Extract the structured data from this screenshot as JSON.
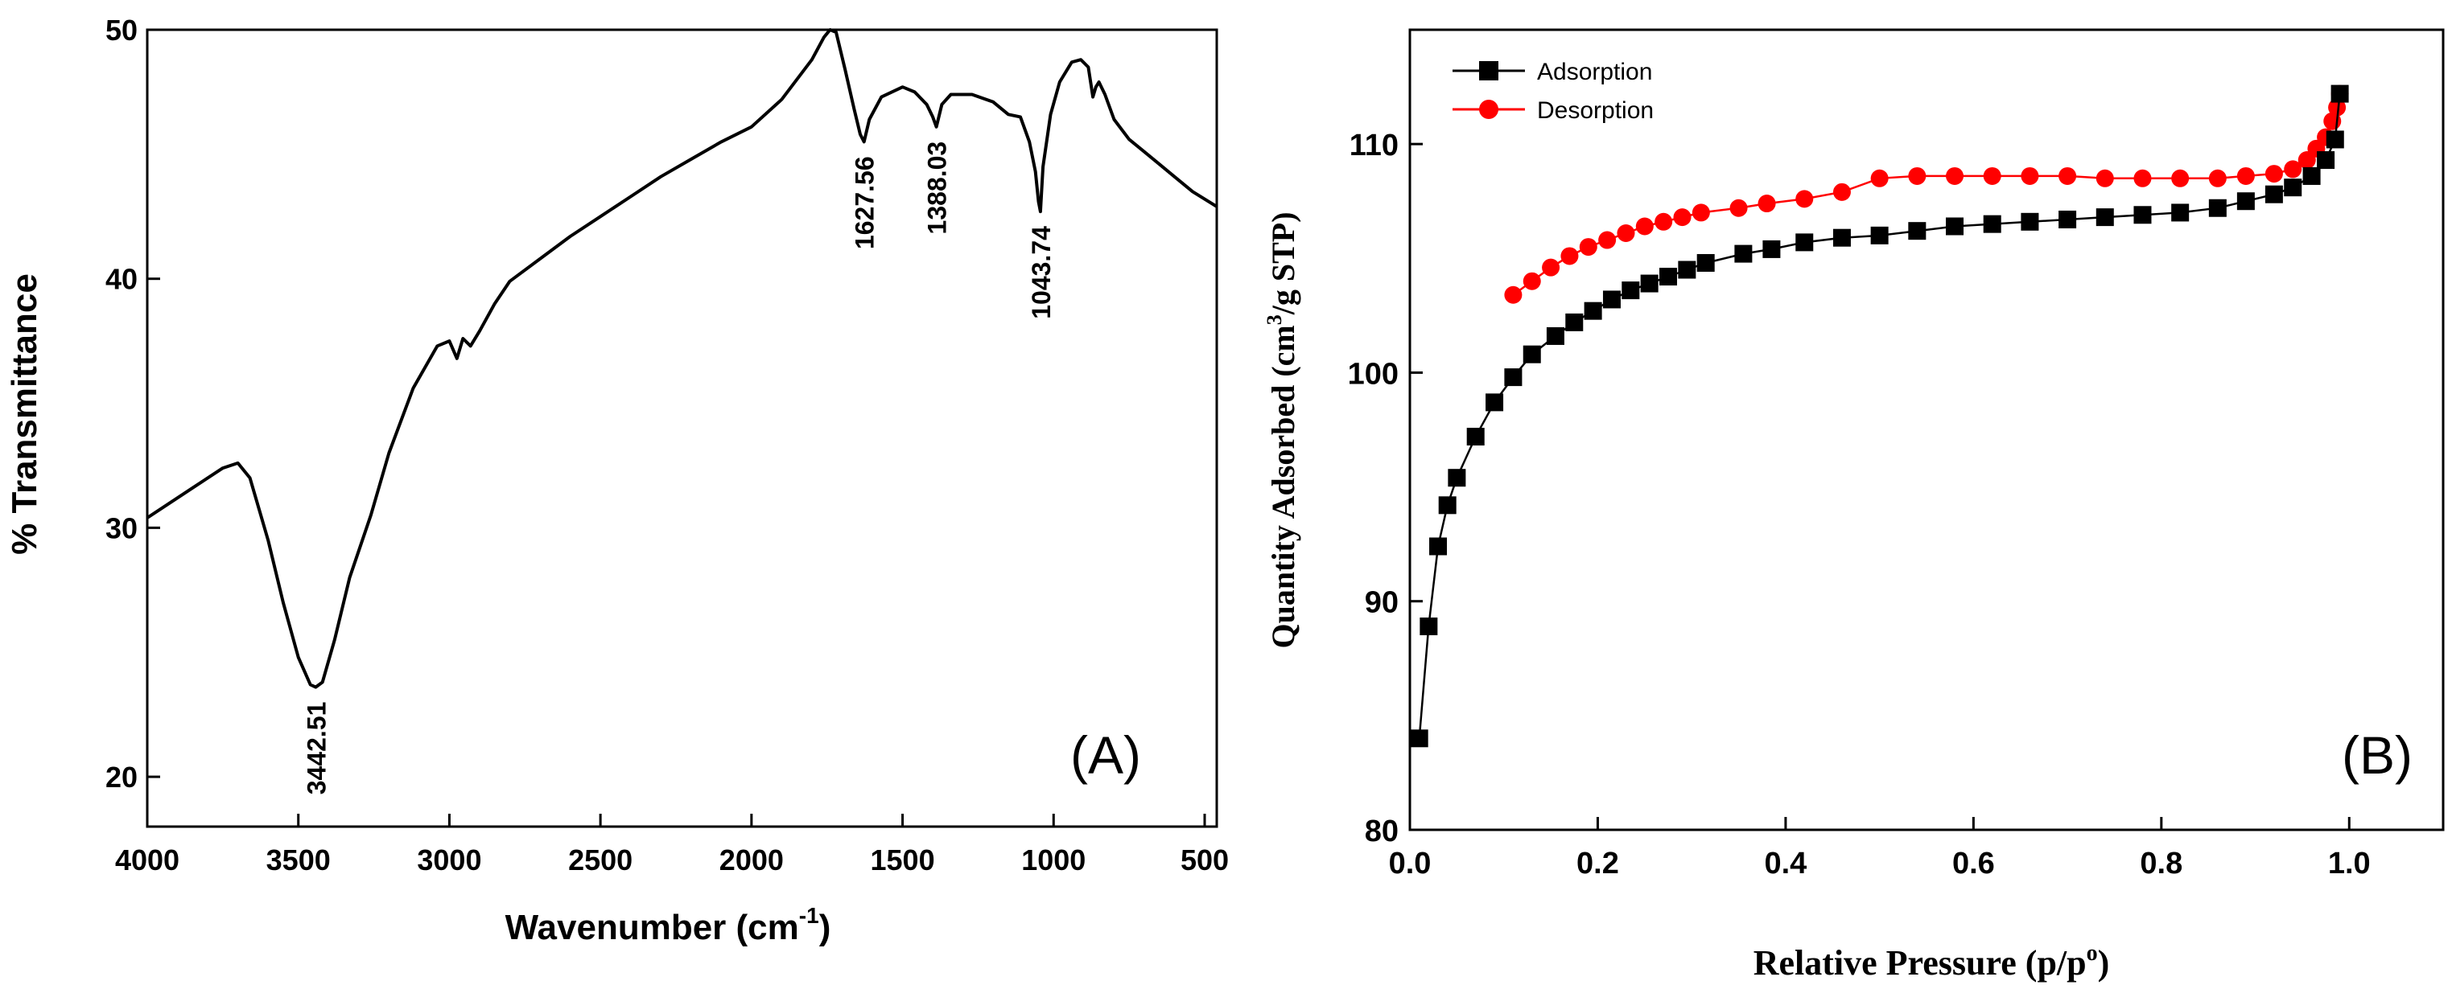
{
  "chart_data": [
    {
      "panel": "A",
      "type": "line",
      "panel_label": "(A)",
      "xlabel": "Wavenumber (cm",
      "xlabel_sup": "-1",
      "xlabel_end": ")",
      "ylabel": "% Transmittance",
      "xlim": [
        4000,
        460
      ],
      "ylim": [
        18,
        50
      ],
      "x_ticks": [
        4000,
        3500,
        3000,
        2500,
        2000,
        1500,
        1000,
        500
      ],
      "y_ticks": [
        20,
        30,
        40,
        50
      ],
      "line_color": "#000000",
      "spectrum": [
        [
          4000,
          30.4
        ],
        [
          3850,
          31.6
        ],
        [
          3750,
          32.4
        ],
        [
          3700,
          32.6
        ],
        [
          3660,
          32.0
        ],
        [
          3600,
          29.5
        ],
        [
          3550,
          27.0
        ],
        [
          3500,
          24.8
        ],
        [
          3460,
          23.7
        ],
        [
          3442.51,
          23.6
        ],
        [
          3420,
          23.8
        ],
        [
          3380,
          25.5
        ],
        [
          3330,
          28.0
        ],
        [
          3260,
          30.5
        ],
        [
          3200,
          33.0
        ],
        [
          3120,
          35.6
        ],
        [
          3040,
          37.3
        ],
        [
          3000,
          37.5
        ],
        [
          2975,
          36.8
        ],
        [
          2955,
          37.6
        ],
        [
          2930,
          37.3
        ],
        [
          2900,
          37.9
        ],
        [
          2850,
          39.0
        ],
        [
          2800,
          39.9
        ],
        [
          2700,
          40.8
        ],
        [
          2600,
          41.7
        ],
        [
          2500,
          42.5
        ],
        [
          2400,
          43.3
        ],
        [
          2300,
          44.1
        ],
        [
          2200,
          44.8
        ],
        [
          2100,
          45.5
        ],
        [
          2000,
          46.1
        ],
        [
          1900,
          47.2
        ],
        [
          1800,
          48.8
        ],
        [
          1760,
          49.7
        ],
        [
          1740,
          50.0
        ],
        [
          1720,
          49.9
        ],
        [
          1690,
          48.4
        ],
        [
          1660,
          46.8
        ],
        [
          1640,
          45.8
        ],
        [
          1627.56,
          45.5
        ],
        [
          1610,
          46.4
        ],
        [
          1570,
          47.3
        ],
        [
          1500,
          47.7
        ],
        [
          1460,
          47.5
        ],
        [
          1420,
          47.0
        ],
        [
          1400,
          46.5
        ],
        [
          1388.03,
          46.1
        ],
        [
          1370,
          47.0
        ],
        [
          1340,
          47.4
        ],
        [
          1270,
          47.4
        ],
        [
          1200,
          47.1
        ],
        [
          1150,
          46.6
        ],
        [
          1110,
          46.5
        ],
        [
          1080,
          45.5
        ],
        [
          1060,
          44.3
        ],
        [
          1050,
          43.1
        ],
        [
          1043.74,
          42.7
        ],
        [
          1035,
          44.5
        ],
        [
          1010,
          46.6
        ],
        [
          980,
          47.9
        ],
        [
          940,
          48.7
        ],
        [
          910,
          48.8
        ],
        [
          885,
          48.5
        ],
        [
          870,
          47.3
        ],
        [
          860,
          47.7
        ],
        [
          850,
          47.9
        ],
        [
          830,
          47.4
        ],
        [
          800,
          46.4
        ],
        [
          750,
          45.6
        ],
        [
          700,
          45.1
        ],
        [
          650,
          44.6
        ],
        [
          600,
          44.1
        ],
        [
          540,
          43.5
        ],
        [
          460,
          42.9
        ]
      ],
      "annotations": [
        {
          "x": 3442.51,
          "y": 23.6,
          "text": "3442.51"
        },
        {
          "x": 1627.56,
          "y": 45.5,
          "text": "1627.56"
        },
        {
          "x": 1388.03,
          "y": 46.1,
          "text": "1388.03"
        },
        {
          "x": 1043.74,
          "y": 42.7,
          "text": "1043.74"
        }
      ]
    },
    {
      "panel": "B",
      "type": "line",
      "panel_label": "(B)",
      "xlabel": "Relative Pressure (p/p",
      "xlabel_sup": "o",
      "xlabel_end": ")",
      "ylabel": "Quantity Adsorbed (cm",
      "ylabel_sup": "3",
      "ylabel_end": "/g STP)",
      "xlim": [
        0,
        1.1
      ],
      "ylim": [
        80,
        115
      ],
      "x_ticks": [
        0.0,
        0.2,
        0.4,
        0.6,
        0.8,
        1.0
      ],
      "x_tick_labels": [
        "0.0",
        "0.2",
        "0.4",
        "0.6",
        "0.8",
        "1.0"
      ],
      "y_ticks": [
        80,
        90,
        100,
        110
      ],
      "legend_position": "top-left",
      "series": [
        {
          "name": "Adsorption",
          "color": "#000000",
          "marker": "square",
          "x": [
            0.01,
            0.02,
            0.03,
            0.04,
            0.05,
            0.07,
            0.09,
            0.11,
            0.13,
            0.155,
            0.175,
            0.195,
            0.215,
            0.235,
            0.255,
            0.275,
            0.295,
            0.315,
            0.355,
            0.385,
            0.42,
            0.46,
            0.5,
            0.54,
            0.58,
            0.62,
            0.66,
            0.7,
            0.74,
            0.78,
            0.82,
            0.86,
            0.89,
            0.92,
            0.94,
            0.96,
            0.975,
            0.985,
            0.99
          ],
          "y": [
            84.0,
            88.9,
            92.4,
            94.2,
            95.4,
            97.2,
            98.7,
            99.8,
            100.8,
            101.6,
            102.2,
            102.7,
            103.2,
            103.6,
            103.9,
            104.2,
            104.5,
            104.8,
            105.2,
            105.4,
            105.7,
            105.9,
            106.0,
            106.2,
            106.4,
            106.5,
            106.6,
            106.7,
            106.8,
            106.9,
            107.0,
            107.2,
            107.5,
            107.8,
            108.1,
            108.6,
            109.3,
            110.2,
            112.2
          ]
        },
        {
          "name": "Desorption",
          "color": "#ff0000",
          "marker": "circle",
          "x": [
            0.11,
            0.13,
            0.15,
            0.17,
            0.19,
            0.21,
            0.23,
            0.25,
            0.27,
            0.29,
            0.31,
            0.35,
            0.38,
            0.42,
            0.46,
            0.5,
            0.54,
            0.58,
            0.62,
            0.66,
            0.7,
            0.74,
            0.78,
            0.82,
            0.86,
            0.89,
            0.92,
            0.94,
            0.955,
            0.965,
            0.975,
            0.982,
            0.987,
            0.99
          ],
          "y": [
            103.4,
            104.0,
            104.6,
            105.1,
            105.5,
            105.8,
            106.1,
            106.4,
            106.6,
            106.8,
            107.0,
            107.2,
            107.4,
            107.6,
            107.9,
            108.5,
            108.6,
            108.6,
            108.6,
            108.6,
            108.6,
            108.5,
            108.5,
            108.5,
            108.5,
            108.6,
            108.7,
            108.9,
            109.3,
            109.8,
            110.3,
            111.0,
            111.6,
            112.2
          ]
        }
      ]
    }
  ]
}
